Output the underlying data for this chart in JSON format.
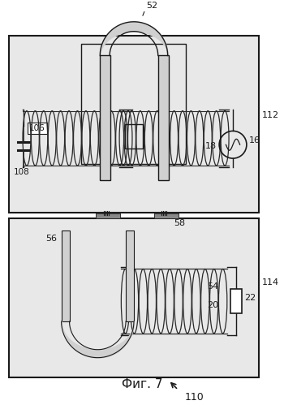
{
  "title": "Фиг. 7",
  "label_110": "110",
  "label_112": "112",
  "label_114": "114",
  "label_52": "52",
  "label_56": "56",
  "label_58": "58",
  "label_54": "54",
  "label_16": "16",
  "label_18": "18",
  "label_20": "20",
  "label_22": "22",
  "label_106": "106",
  "label_108": "108",
  "bg_color": "#ffffff",
  "box_facecolor": "#e8e8e8",
  "core_facecolor": "#d0d0d0",
  "line_color": "#1a1a1a",
  "coil_color": "#2a2a2a"
}
